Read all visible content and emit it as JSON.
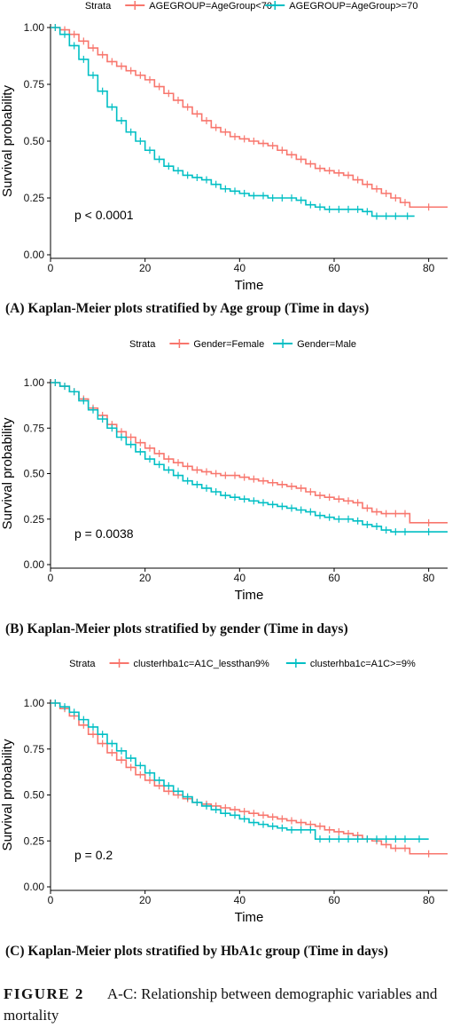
{
  "colors": {
    "series1": "#F8766D",
    "series2": "#00BFC4",
    "axis": "#000000"
  },
  "panels": [
    {
      "caption": "(A) Kaplan-Meier plots stratified by Age group (Time in days)",
      "legend": {
        "title": "Strata",
        "items": [
          "AGEGROUP=AgeGroup<70",
          "AGEGROUP=AgeGroup>=70"
        ]
      },
      "pvalue": "p < 0.0001"
    },
    {
      "caption": "(B) Kaplan-Meier plots stratified by gender (Time in days)",
      "legend": {
        "title": "Strata",
        "items": [
          "Gender=Female",
          "Gender=Male"
        ]
      },
      "pvalue": "p = 0.0038"
    },
    {
      "caption": "(C) Kaplan-Meier plots stratified by HbA1c group (Time in days)",
      "legend": {
        "title": "Strata",
        "items": [
          "clusterhba1c=A1C_lessthan9%",
          "clusterhba1c=A1C>=9%"
        ]
      },
      "pvalue": "p = 0.2"
    }
  ],
  "figure_caption": {
    "label": "FIGURE 2",
    "text": "A-C: Relationship between demographic variables and mortality"
  },
  "chart_data": [
    {
      "type": "line",
      "step": true,
      "xlabel": "Time",
      "ylabel": "Survival probability",
      "xlim": [
        0,
        84
      ],
      "ylim": [
        0,
        1
      ],
      "xticks": [
        0,
        20,
        40,
        60,
        80
      ],
      "yticks": [
        "0.00",
        "0.25",
        "0.50",
        "0.75",
        "1.00"
      ],
      "grid": false,
      "legend_position": "top",
      "series": [
        {
          "name": "AGEGROUP=AgeGroup<70",
          "x": [
            0,
            2,
            4,
            6,
            8,
            10,
            12,
            14,
            16,
            18,
            20,
            22,
            24,
            26,
            28,
            30,
            32,
            34,
            36,
            38,
            40,
            42,
            44,
            46,
            48,
            50,
            52,
            54,
            56,
            58,
            60,
            62,
            64,
            66,
            68,
            70,
            72,
            74,
            76,
            84
          ],
          "y": [
            1.0,
            0.99,
            0.97,
            0.94,
            0.91,
            0.88,
            0.85,
            0.83,
            0.81,
            0.79,
            0.77,
            0.74,
            0.71,
            0.68,
            0.65,
            0.62,
            0.59,
            0.56,
            0.54,
            0.52,
            0.51,
            0.5,
            0.49,
            0.48,
            0.46,
            0.44,
            0.42,
            0.4,
            0.38,
            0.37,
            0.36,
            0.35,
            0.33,
            0.31,
            0.29,
            0.27,
            0.25,
            0.23,
            0.21,
            0.21
          ]
        },
        {
          "name": "AGEGROUP=AgeGroup>=70",
          "x": [
            0,
            2,
            4,
            6,
            8,
            10,
            12,
            14,
            16,
            18,
            20,
            22,
            24,
            26,
            28,
            30,
            32,
            34,
            36,
            38,
            40,
            42,
            44,
            46,
            48,
            50,
            52,
            54,
            56,
            58,
            60,
            62,
            64,
            66,
            68,
            70,
            72,
            74,
            77
          ],
          "y": [
            1.0,
            0.97,
            0.92,
            0.86,
            0.79,
            0.72,
            0.65,
            0.59,
            0.54,
            0.5,
            0.46,
            0.42,
            0.39,
            0.37,
            0.35,
            0.34,
            0.33,
            0.31,
            0.29,
            0.28,
            0.27,
            0.26,
            0.26,
            0.25,
            0.25,
            0.25,
            0.24,
            0.22,
            0.21,
            0.2,
            0.2,
            0.2,
            0.2,
            0.19,
            0.17,
            0.17,
            0.17,
            0.17,
            0.17
          ]
        }
      ]
    },
    {
      "type": "line",
      "step": true,
      "xlabel": "Time",
      "ylabel": "Survival probability",
      "xlim": [
        0,
        84
      ],
      "ylim": [
        0,
        1
      ],
      "xticks": [
        0,
        20,
        40,
        60,
        80
      ],
      "yticks": [
        "0.00",
        "0.25",
        "0.50",
        "0.75",
        "1.00"
      ],
      "grid": false,
      "legend_position": "top",
      "series": [
        {
          "name": "Gender=Female",
          "x": [
            0,
            2,
            4,
            6,
            8,
            10,
            12,
            14,
            16,
            18,
            20,
            22,
            24,
            26,
            28,
            30,
            32,
            34,
            36,
            38,
            40,
            42,
            44,
            46,
            48,
            50,
            52,
            54,
            56,
            58,
            60,
            62,
            64,
            66,
            68,
            70,
            72,
            74,
            76,
            84
          ],
          "y": [
            1.0,
            0.98,
            0.95,
            0.91,
            0.86,
            0.82,
            0.77,
            0.73,
            0.7,
            0.67,
            0.64,
            0.61,
            0.58,
            0.56,
            0.54,
            0.52,
            0.51,
            0.5,
            0.49,
            0.49,
            0.48,
            0.47,
            0.46,
            0.45,
            0.44,
            0.43,
            0.42,
            0.4,
            0.38,
            0.37,
            0.36,
            0.35,
            0.34,
            0.31,
            0.29,
            0.28,
            0.28,
            0.28,
            0.23,
            0.23
          ]
        },
        {
          "name": "Gender=Male",
          "x": [
            0,
            2,
            4,
            6,
            8,
            10,
            12,
            14,
            16,
            18,
            20,
            22,
            24,
            26,
            28,
            30,
            32,
            34,
            36,
            38,
            40,
            42,
            44,
            46,
            48,
            50,
            52,
            54,
            56,
            58,
            60,
            62,
            64,
            66,
            68,
            70,
            72,
            74,
            76,
            84
          ],
          "y": [
            1.0,
            0.98,
            0.95,
            0.9,
            0.85,
            0.8,
            0.75,
            0.7,
            0.66,
            0.62,
            0.58,
            0.55,
            0.52,
            0.49,
            0.46,
            0.44,
            0.42,
            0.4,
            0.38,
            0.37,
            0.36,
            0.35,
            0.34,
            0.33,
            0.32,
            0.31,
            0.3,
            0.29,
            0.27,
            0.26,
            0.25,
            0.25,
            0.24,
            0.22,
            0.21,
            0.19,
            0.18,
            0.18,
            0.18,
            0.18
          ]
        }
      ]
    },
    {
      "type": "line",
      "step": true,
      "xlabel": "Time",
      "ylabel": "Survival probability",
      "xlim": [
        0,
        84
      ],
      "ylim": [
        0,
        1
      ],
      "xticks": [
        0,
        20,
        40,
        60,
        80
      ],
      "yticks": [
        "0.00",
        "0.25",
        "0.50",
        "0.75",
        "1.00"
      ],
      "grid": false,
      "legend_position": "top",
      "series": [
        {
          "name": "clusterhba1c=A1C_lessthan9%",
          "x": [
            0,
            2,
            4,
            6,
            8,
            10,
            12,
            14,
            16,
            18,
            20,
            22,
            24,
            26,
            28,
            30,
            32,
            34,
            36,
            38,
            40,
            42,
            44,
            46,
            48,
            50,
            52,
            54,
            56,
            58,
            60,
            62,
            64,
            66,
            68,
            70,
            72,
            74,
            76,
            84
          ],
          "y": [
            1.0,
            0.97,
            0.93,
            0.88,
            0.83,
            0.78,
            0.73,
            0.69,
            0.65,
            0.61,
            0.58,
            0.55,
            0.52,
            0.5,
            0.48,
            0.46,
            0.45,
            0.44,
            0.43,
            0.42,
            0.41,
            0.4,
            0.39,
            0.38,
            0.37,
            0.36,
            0.35,
            0.34,
            0.33,
            0.31,
            0.3,
            0.29,
            0.28,
            0.26,
            0.25,
            0.23,
            0.21,
            0.21,
            0.18,
            0.18
          ]
        },
        {
          "name": "clusterhba1c=A1C>=9%",
          "x": [
            0,
            2,
            4,
            6,
            8,
            10,
            12,
            14,
            16,
            18,
            20,
            22,
            24,
            26,
            28,
            30,
            32,
            34,
            36,
            38,
            40,
            42,
            44,
            46,
            48,
            50,
            52,
            54,
            56,
            58,
            60,
            62,
            64,
            66,
            68,
            70,
            72,
            74,
            76,
            80
          ],
          "y": [
            1.0,
            0.98,
            0.95,
            0.91,
            0.87,
            0.83,
            0.78,
            0.74,
            0.7,
            0.66,
            0.62,
            0.58,
            0.55,
            0.52,
            0.49,
            0.46,
            0.44,
            0.42,
            0.4,
            0.39,
            0.37,
            0.35,
            0.34,
            0.33,
            0.32,
            0.31,
            0.31,
            0.31,
            0.26,
            0.26,
            0.26,
            0.26,
            0.26,
            0.26,
            0.26,
            0.26,
            0.26,
            0.26,
            0.26,
            0.26
          ]
        }
      ]
    }
  ]
}
